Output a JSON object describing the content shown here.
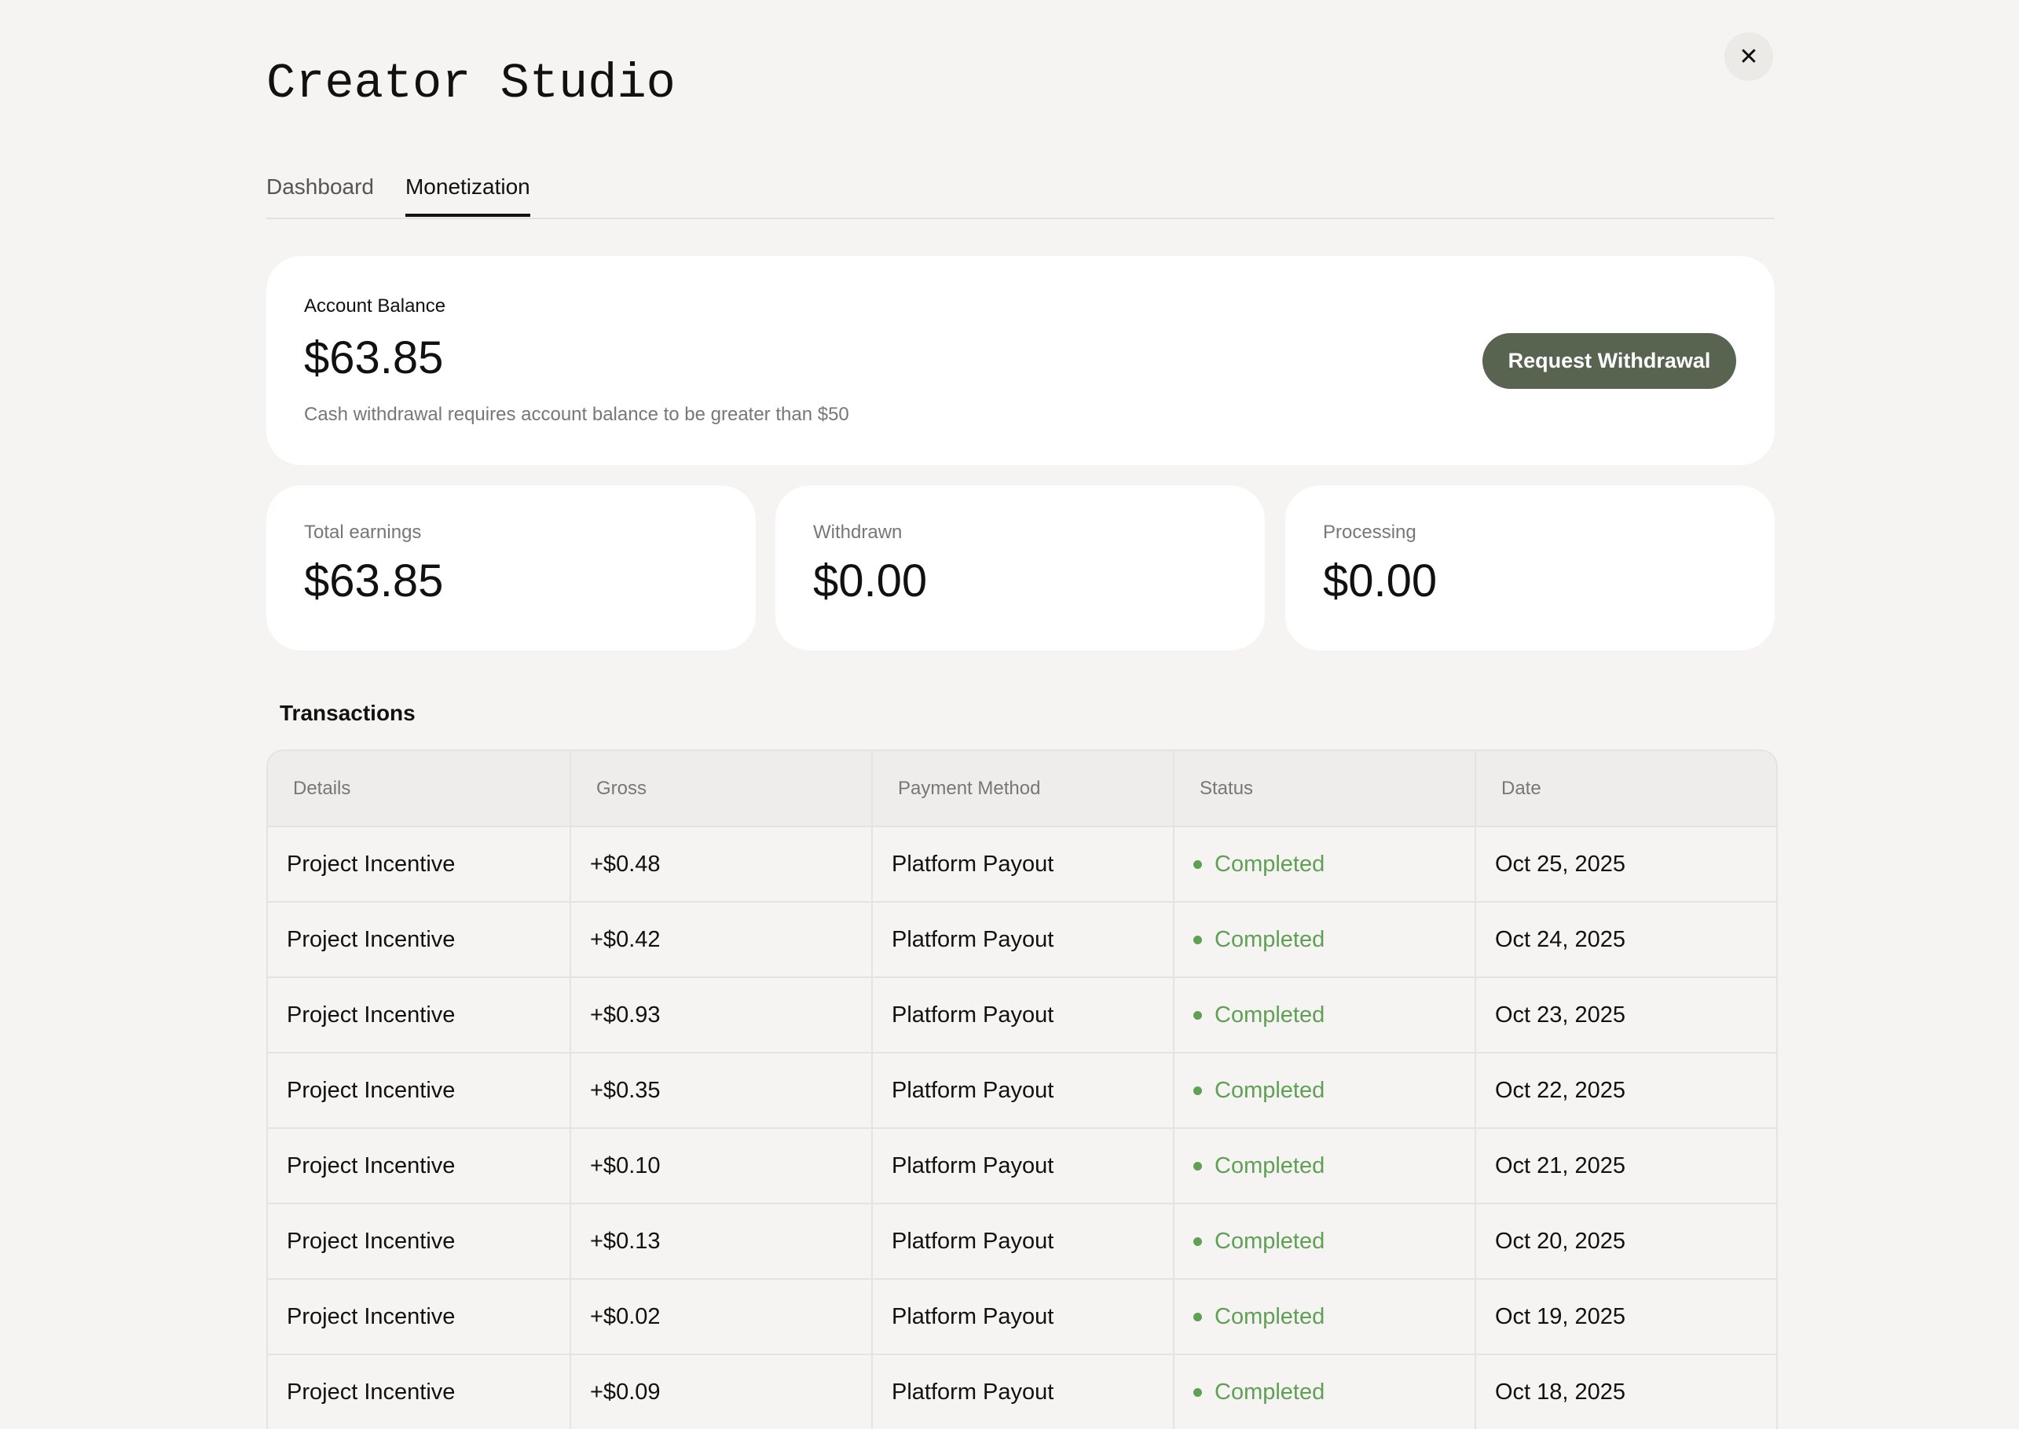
{
  "app": {
    "title": "Creator Studio",
    "close_icon": "close-icon"
  },
  "tabs": [
    {
      "label": "Dashboard",
      "active": false
    },
    {
      "label": "Monetization",
      "active": true
    }
  ],
  "balance": {
    "label": "Account Balance",
    "amount": "$63.85",
    "note": "Cash withdrawal requires account balance to be greater than $50",
    "button": "Request Withdrawal"
  },
  "stats": [
    {
      "label": "Total earnings",
      "value": "$63.85"
    },
    {
      "label": "Withdrawn",
      "value": "$0.00"
    },
    {
      "label": "Processing",
      "value": "$0.00"
    }
  ],
  "transactions": {
    "title": "Transactions",
    "columns": [
      "Details",
      "Gross",
      "Payment Method",
      "Status",
      "Date"
    ],
    "rows": [
      {
        "details": "Project Incentive",
        "gross": "+$0.48",
        "method": "Platform Payout",
        "status": "Completed",
        "date": "Oct 25, 2025"
      },
      {
        "details": "Project Incentive",
        "gross": "+$0.42",
        "method": "Platform Payout",
        "status": "Completed",
        "date": "Oct 24, 2025"
      },
      {
        "details": "Project Incentive",
        "gross": "+$0.93",
        "method": "Platform Payout",
        "status": "Completed",
        "date": "Oct 23, 2025"
      },
      {
        "details": "Project Incentive",
        "gross": "+$0.35",
        "method": "Platform Payout",
        "status": "Completed",
        "date": "Oct 22, 2025"
      },
      {
        "details": "Project Incentive",
        "gross": "+$0.10",
        "method": "Platform Payout",
        "status": "Completed",
        "date": "Oct 21, 2025"
      },
      {
        "details": "Project Incentive",
        "gross": "+$0.13",
        "method": "Platform Payout",
        "status": "Completed",
        "date": "Oct 20, 2025"
      },
      {
        "details": "Project Incentive",
        "gross": "+$0.02",
        "method": "Platform Payout",
        "status": "Completed",
        "date": "Oct 19, 2025"
      },
      {
        "details": "Project Incentive",
        "gross": "+$0.09",
        "method": "Platform Payout",
        "status": "Completed",
        "date": "Oct 18, 2025"
      }
    ]
  },
  "colors": {
    "accent": "#586450",
    "status_completed": "#5fa055",
    "background": "#f5f4f2"
  }
}
